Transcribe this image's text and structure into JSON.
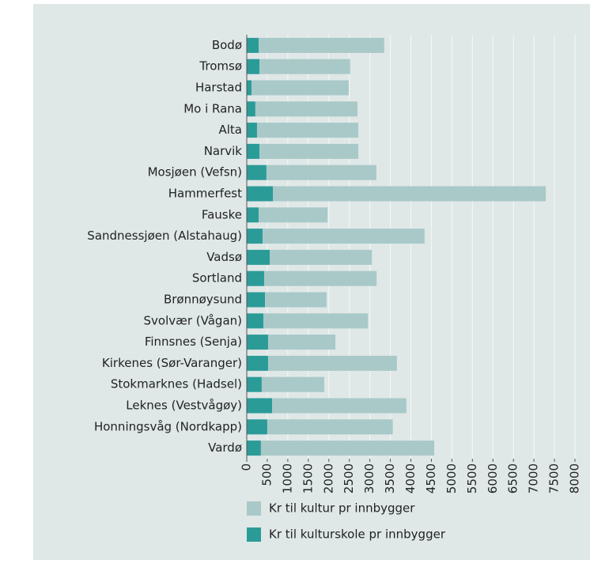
{
  "chart_data": {
    "type": "stacked-barh",
    "categories": [
      "Bodø",
      "Tromsø",
      "Harstad",
      "Mo i Rana",
      "Alta",
      "Narvik",
      "Mosjøen (Vefsn)",
      "Hammerfest",
      "Fauske",
      "Sandnessjøen (Alstahaug)",
      "Vadsø",
      "Sortland",
      "Brønnøysund",
      "Svolvær (Vågan)",
      "Finnsnes (Senja)",
      "Kirkenes (Sør-Varanger)",
      "Stokmarknes (Hadsel)",
      "Leknes (Vestvågøy)",
      "Honningsvåg (Nordkapp)",
      "Vardø"
    ],
    "series": [
      {
        "name": "Kr til kultur pr innbygger",
        "color": "#a9c9c8",
        "values": [
          3060,
          2210,
          2370,
          2490,
          2470,
          2410,
          2680,
          6650,
          1680,
          3950,
          2490,
          2740,
          1500,
          2550,
          1640,
          3140,
          1525,
          3270,
          3060,
          4225
        ]
      },
      {
        "name": "Kr til kulturskole pr innbygger",
        "color": "#2b9b98",
        "values": [
          290,
          310,
          115,
          210,
          250,
          310,
          480,
          640,
          290,
          385,
          560,
          425,
          445,
          405,
          520,
          520,
          365,
          620,
          500,
          345
        ]
      }
    ],
    "stack_order": [
      1,
      0
    ],
    "xlim": [
      0,
      8000
    ],
    "xticks": [
      0,
      500,
      1000,
      1500,
      2000,
      2500,
      3000,
      3500,
      4000,
      4500,
      5000,
      5500,
      6000,
      6500,
      7000,
      7500,
      8000
    ],
    "grid": true
  }
}
